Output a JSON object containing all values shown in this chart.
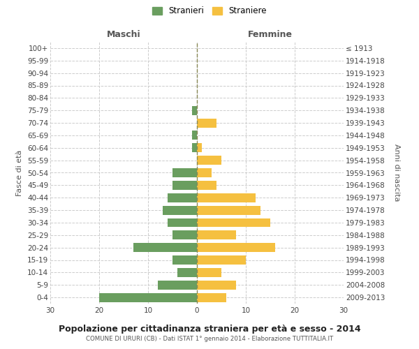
{
  "age_groups": [
    "0-4",
    "5-9",
    "10-14",
    "15-19",
    "20-24",
    "25-29",
    "30-34",
    "35-39",
    "40-44",
    "45-49",
    "50-54",
    "55-59",
    "60-64",
    "65-69",
    "70-74",
    "75-79",
    "80-84",
    "85-89",
    "90-94",
    "95-99",
    "100+"
  ],
  "birth_years": [
    "2009-2013",
    "2004-2008",
    "1999-2003",
    "1994-1998",
    "1989-1993",
    "1984-1988",
    "1979-1983",
    "1974-1978",
    "1969-1973",
    "1964-1968",
    "1959-1963",
    "1954-1958",
    "1949-1953",
    "1944-1948",
    "1939-1943",
    "1934-1938",
    "1929-1933",
    "1924-1928",
    "1919-1923",
    "1914-1918",
    "≤ 1913"
  ],
  "maschi": [
    20,
    8,
    4,
    5,
    13,
    5,
    6,
    7,
    6,
    5,
    5,
    0,
    1,
    1,
    0,
    1,
    0,
    0,
    0,
    0,
    0
  ],
  "femmine": [
    6,
    8,
    5,
    10,
    16,
    8,
    15,
    13,
    12,
    4,
    3,
    5,
    1,
    0,
    4,
    0,
    0,
    0,
    0,
    0,
    0
  ],
  "color_maschi": "#6a9e5f",
  "color_femmine": "#f5c040",
  "title": "Popolazione per cittadinanza straniera per età e sesso - 2014",
  "subtitle": "COMUNE DI URURI (CB) - Dati ISTAT 1° gennaio 2014 - Elaborazione TUTTITALIA.IT",
  "label_left": "Maschi",
  "label_right": "Femmine",
  "ylabel_left": "Fasce di età",
  "ylabel_right": "Anni di nascita",
  "legend_maschi": "Stranieri",
  "legend_femmine": "Straniere",
  "xlim": 30,
  "bg_color": "#ffffff",
  "grid_color": "#cccccc"
}
